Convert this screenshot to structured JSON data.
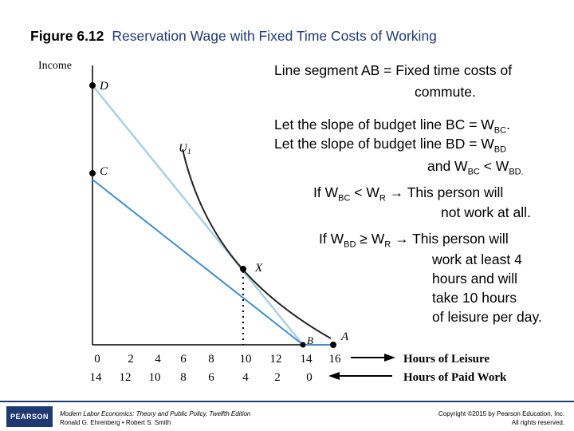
{
  "title": {
    "figure": "Figure 6.12",
    "subtitle": "Reservation Wage with Fixed Time Costs of Working"
  },
  "diagram": {
    "y_axis_label": "Income",
    "points": {
      "D": "D",
      "C": "C",
      "U1": "U",
      "U1_sub": "1",
      "X": "X",
      "A": "A",
      "B": "B"
    },
    "leisure_ticks": [
      "0",
      "2",
      "4",
      "6",
      "8",
      "10",
      "12",
      "14",
      "16"
    ],
    "work_ticks": [
      "14",
      "12",
      "10",
      "8",
      "6",
      "4",
      "2",
      "0"
    ],
    "leisure_axis_label": "Hours of Leisure",
    "work_axis_label": "Hours of Paid Work",
    "colors": {
      "line_BD": "#a8d0e8",
      "line_BC": "#3d8fd0",
      "curve": "#222222",
      "accent": "#1f3a73"
    }
  },
  "notes": {
    "ab_line1": "Line segment AB = Fixed time costs of",
    "ab_line2": "commute.",
    "bc_pre": "Let the slope of budget line BC = W",
    "bc_sub": "BC",
    "bc_post": ".",
    "bd_pre": "Let the slope of budget line BD = W",
    "bd_sub": "BD",
    "and_pre": "and W",
    "and_sub1": "BC",
    "and_mid": " < W",
    "and_sub2": "BD.",
    "if1_pre": "If W",
    "if1_sub1": "BC",
    "if1_mid": " < W",
    "if1_sub2": "R",
    "if1_post": "  →  This person will",
    "if1_line2": "not work at all.",
    "if2_pre": "If W",
    "if2_sub1": "BD",
    "if2_mid": " ≥ W",
    "if2_sub2": "R",
    "if2_post": "  → This person will",
    "if2_line2": "work at least 4",
    "if2_line3": "hours and will",
    "if2_line4": "take 10 hours",
    "if2_line5": "of leisure per day."
  },
  "footer": {
    "logo": "PEARSON",
    "book": "Modern Labor Economics: Theory and Public Policy, Twelfth Edition",
    "authors": "Ronald G. Ehrenberg • Robert S. Smith",
    "copyright": "Copyright ©2015 by Pearson Education, Inc.",
    "rights": "All rights reserved."
  }
}
